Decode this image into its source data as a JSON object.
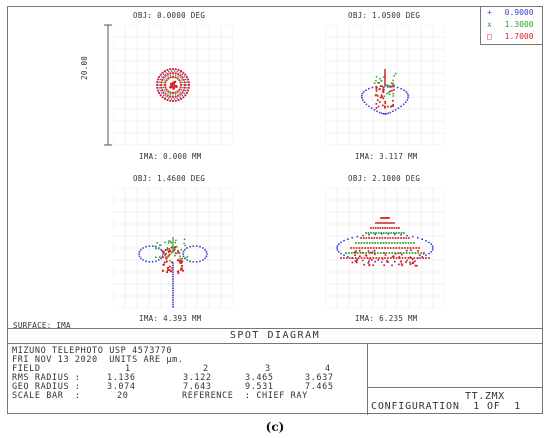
{
  "panels": [
    {
      "obj": "OBJ: 0.0000 DEG",
      "ima": "IMA: 0.000 MM"
    },
    {
      "obj": "OBJ: 1.0500 DEG",
      "ima": "IMA: 3.117 MM"
    },
    {
      "obj": "OBJ: 1.4600 DEG",
      "ima": "IMA: 4.393 MM"
    },
    {
      "obj": "OBJ: 2.1000 DEG",
      "ima": "IMA: 6.235 MM"
    }
  ],
  "scale_label": "20.00",
  "surface": "SURFACE: IMA",
  "legend": [
    {
      "symbol": "+",
      "label": "0.9000",
      "color": "#3b3bd8"
    },
    {
      "symbol": "x",
      "label": "1.3000",
      "color": "#2aa52a"
    },
    {
      "symbol": "□",
      "label": "1.7000",
      "color": "#d82424"
    }
  ],
  "footer": {
    "title": "SPOT DIAGRAM",
    "line1": "MIZUNO TELEPHOTO USP 4573770",
    "line2": "FRI NOV 13 2020  UNITS ARE µm.",
    "field_label": "FIELD",
    "field_values": [
      "1",
      "2",
      "3",
      "4"
    ],
    "rms_label": "RMS RADIUS :",
    "rms_values": [
      "1.136",
      "3.122",
      "3.465",
      "3.637"
    ],
    "geo_label": "GEO RADIUS :",
    "geo_values": [
      "3.074",
      "7.643",
      "9.531",
      "7.465"
    ],
    "scale_bar_label": "SCALE BAR  :",
    "scale_bar_value": "20",
    "reference": "REFERENCE  : CHIEF RAY",
    "filename": "TT.ZMX",
    "configuration": "CONFIGURATION  1 OF  1"
  },
  "caption": "(c)",
  "colors": {
    "blue": "#3b3bd8",
    "green": "#2aa52a",
    "red": "#d82424"
  }
}
